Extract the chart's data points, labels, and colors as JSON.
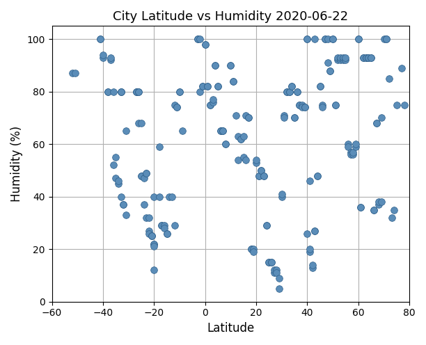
{
  "title": "City Latitude vs Humidity 2020-06-22",
  "xlabel": "Latitude",
  "ylabel": "Humidity (%)",
  "xlim": [
    -60,
    80
  ],
  "ylim": [
    0,
    105
  ],
  "xticks": [
    -60,
    -40,
    -20,
    0,
    20,
    40,
    60,
    80
  ],
  "yticks": [
    0,
    20,
    40,
    60,
    80,
    100
  ],
  "marker_color": "#5b8db8",
  "marker_edge_color": "#2e5f8a",
  "marker_size": 7,
  "grid_color": "#b0b0b0",
  "background_color": "#ffffff",
  "points": [
    [
      -52,
      87
    ],
    [
      -51,
      87
    ],
    [
      -41,
      100
    ],
    [
      -41,
      100
    ],
    [
      -40,
      93
    ],
    [
      -40,
      94
    ],
    [
      -38,
      80
    ],
    [
      -38,
      80
    ],
    [
      -37,
      92
    ],
    [
      -37,
      93
    ],
    [
      -36,
      52
    ],
    [
      -36,
      80
    ],
    [
      -35,
      47
    ],
    [
      -35,
      55
    ],
    [
      -34,
      45
    ],
    [
      -34,
      46
    ],
    [
      -33,
      40
    ],
    [
      -33,
      80
    ],
    [
      -33,
      80
    ],
    [
      -33,
      80
    ],
    [
      -32,
      37
    ],
    [
      -32,
      37
    ],
    [
      -31,
      33
    ],
    [
      -31,
      65
    ],
    [
      -27,
      80
    ],
    [
      -27,
      80
    ],
    [
      -27,
      80
    ],
    [
      -26,
      80
    ],
    [
      -26,
      80
    ],
    [
      -26,
      68
    ],
    [
      -25,
      68
    ],
    [
      -25,
      48
    ],
    [
      -25,
      48
    ],
    [
      -24,
      37
    ],
    [
      -24,
      47
    ],
    [
      -23,
      49
    ],
    [
      -23,
      49
    ],
    [
      -23,
      32
    ],
    [
      -22,
      32
    ],
    [
      -22,
      27
    ],
    [
      -22,
      26
    ],
    [
      -21,
      25
    ],
    [
      -21,
      25
    ],
    [
      -21,
      25
    ],
    [
      -20,
      22
    ],
    [
      -20,
      22
    ],
    [
      -20,
      21
    ],
    [
      -20,
      12
    ],
    [
      -20,
      40
    ],
    [
      -18,
      59
    ],
    [
      -18,
      40
    ],
    [
      -17,
      29
    ],
    [
      -17,
      29
    ],
    [
      -16,
      29
    ],
    [
      -16,
      28
    ],
    [
      -15,
      26
    ],
    [
      -15,
      26
    ],
    [
      -14,
      40
    ],
    [
      -13,
      40
    ],
    [
      -12,
      29
    ],
    [
      -12,
      75
    ],
    [
      -11,
      74
    ],
    [
      -11,
      74
    ],
    [
      -10,
      80
    ],
    [
      -10,
      80
    ],
    [
      -9,
      65
    ],
    [
      -3,
      100
    ],
    [
      -3,
      100
    ],
    [
      -2,
      100
    ],
    [
      -2,
      80
    ],
    [
      -1,
      82
    ],
    [
      -1,
      82
    ],
    [
      0,
      98
    ],
    [
      0,
      98
    ],
    [
      1,
      82
    ],
    [
      1,
      82
    ],
    [
      2,
      75
    ],
    [
      2,
      75
    ],
    [
      3,
      76
    ],
    [
      3,
      77
    ],
    [
      4,
      90
    ],
    [
      4,
      90
    ],
    [
      5,
      82
    ],
    [
      5,
      82
    ],
    [
      6,
      65
    ],
    [
      6,
      65
    ],
    [
      7,
      65
    ],
    [
      7,
      65
    ],
    [
      8,
      60
    ],
    [
      8,
      60
    ],
    [
      10,
      90
    ],
    [
      10,
      90
    ],
    [
      11,
      84
    ],
    [
      11,
      84
    ],
    [
      12,
      71
    ],
    [
      13,
      54
    ],
    [
      13,
      63
    ],
    [
      14,
      62
    ],
    [
      14,
      62
    ],
    [
      15,
      55
    ],
    [
      15,
      63
    ],
    [
      16,
      71
    ],
    [
      16,
      54
    ],
    [
      17,
      70
    ],
    [
      17,
      70
    ],
    [
      18,
      20
    ],
    [
      18,
      20
    ],
    [
      19,
      20
    ],
    [
      19,
      19
    ],
    [
      20,
      53
    ],
    [
      20,
      54
    ],
    [
      21,
      48
    ],
    [
      21,
      48
    ],
    [
      22,
      50
    ],
    [
      22,
      50
    ],
    [
      23,
      48
    ],
    [
      23,
      48
    ],
    [
      24,
      29
    ],
    [
      24,
      29
    ],
    [
      25,
      15
    ],
    [
      25,
      15
    ],
    [
      26,
      15
    ],
    [
      26,
      15
    ],
    [
      27,
      11
    ],
    [
      27,
      12
    ],
    [
      28,
      12
    ],
    [
      28,
      11
    ],
    [
      29,
      9
    ],
    [
      29,
      5
    ],
    [
      30,
      40
    ],
    [
      30,
      41
    ],
    [
      31,
      71
    ],
    [
      31,
      70
    ],
    [
      32,
      80
    ],
    [
      32,
      80
    ],
    [
      33,
      80
    ],
    [
      33,
      80
    ],
    [
      34,
      82
    ],
    [
      34,
      82
    ],
    [
      35,
      70
    ],
    [
      35,
      70
    ],
    [
      36,
      80
    ],
    [
      36,
      80
    ],
    [
      37,
      75
    ],
    [
      37,
      75
    ],
    [
      38,
      75
    ],
    [
      38,
      74
    ],
    [
      39,
      74
    ],
    [
      39,
      74
    ],
    [
      40,
      100
    ],
    [
      40,
      100
    ],
    [
      40,
      26
    ],
    [
      41,
      19
    ],
    [
      41,
      20
    ],
    [
      41,
      46
    ],
    [
      42,
      13
    ],
    [
      42,
      14
    ],
    [
      43,
      27
    ],
    [
      43,
      27
    ],
    [
      43,
      100
    ],
    [
      44,
      48
    ],
    [
      44,
      48
    ],
    [
      45,
      82
    ],
    [
      45,
      82
    ],
    [
      46,
      75
    ],
    [
      46,
      74
    ],
    [
      47,
      100
    ],
    [
      47,
      100
    ],
    [
      48,
      100
    ],
    [
      48,
      91
    ],
    [
      49,
      88
    ],
    [
      49,
      88
    ],
    [
      50,
      100
    ],
    [
      50,
      100
    ],
    [
      51,
      75
    ],
    [
      51,
      75
    ],
    [
      52,
      92
    ],
    [
      52,
      93
    ],
    [
      53,
      92
    ],
    [
      53,
      93
    ],
    [
      54,
      92
    ],
    [
      54,
      93
    ],
    [
      55,
      92
    ],
    [
      55,
      93
    ],
    [
      56,
      60
    ],
    [
      56,
      59
    ],
    [
      57,
      57
    ],
    [
      57,
      56
    ],
    [
      58,
      56
    ],
    [
      58,
      57
    ],
    [
      59,
      59
    ],
    [
      59,
      60
    ],
    [
      60,
      100
    ],
    [
      60,
      100
    ],
    [
      61,
      36
    ],
    [
      61,
      36
    ],
    [
      62,
      93
    ],
    [
      62,
      93
    ],
    [
      63,
      93
    ],
    [
      63,
      93
    ],
    [
      64,
      93
    ],
    [
      64,
      93
    ],
    [
      65,
      93
    ],
    [
      65,
      93
    ],
    [
      66,
      35
    ],
    [
      66,
      35
    ],
    [
      67,
      68
    ],
    [
      67,
      68
    ],
    [
      68,
      37
    ],
    [
      68,
      38
    ],
    [
      69,
      70
    ],
    [
      69,
      38
    ],
    [
      70,
      100
    ],
    [
      71,
      100
    ],
    [
      71,
      100
    ],
    [
      72,
      85
    ],
    [
      73,
      32
    ],
    [
      74,
      35
    ],
    [
      75,
      75
    ],
    [
      77,
      89
    ],
    [
      78,
      75
    ]
  ]
}
